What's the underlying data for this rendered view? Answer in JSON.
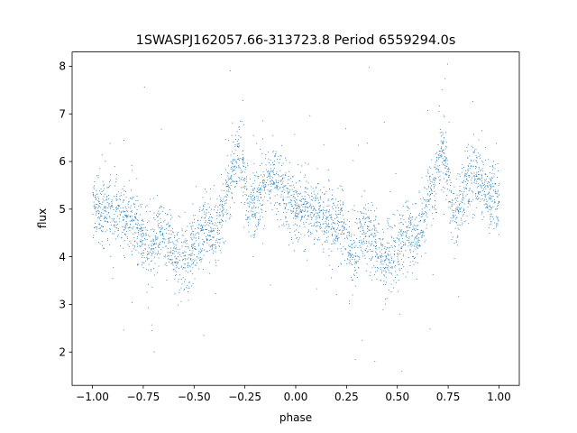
{
  "chart_data": {
    "type": "scatter",
    "title": "1SWASPJ162057.66-313723.8 Period 6559294.0s",
    "xlabel": "phase",
    "ylabel": "flux",
    "xlim": [
      -1.1,
      1.1
    ],
    "ylim": [
      1.3,
      8.3
    ],
    "grid": false,
    "legend": "none",
    "marker_color": "#1f77b4",
    "x_ticks": [
      {
        "value": -1.0,
        "label": "−1.00"
      },
      {
        "value": -0.75,
        "label": "−0.75"
      },
      {
        "value": -0.5,
        "label": "−0.50"
      },
      {
        "value": -0.25,
        "label": "−0.25"
      },
      {
        "value": 0.0,
        "label": "0.00"
      },
      {
        "value": 0.25,
        "label": "0.25"
      },
      {
        "value": 0.5,
        "label": "0.50"
      },
      {
        "value": 0.75,
        "label": "0.75"
      },
      {
        "value": 1.0,
        "label": "1.00"
      }
    ],
    "y_ticks": [
      {
        "value": 2,
        "label": "2"
      },
      {
        "value": 3,
        "label": "3"
      },
      {
        "value": 4,
        "label": "4"
      },
      {
        "value": 5,
        "label": "5"
      },
      {
        "value": 6,
        "label": "6"
      },
      {
        "value": 7,
        "label": "7"
      },
      {
        "value": 8,
        "label": "8"
      }
    ],
    "series": [
      {
        "phase_range": [
          -1.0,
          1.0
        ],
        "repeats_every": 1.0,
        "profile": {
          "x": [
            0.0,
            0.05,
            0.12,
            0.2,
            0.25,
            0.28,
            0.33,
            0.38,
            0.43,
            0.5,
            0.55,
            0.6,
            0.65,
            0.7,
            0.72,
            0.77,
            0.82,
            0.88,
            0.93,
            0.97,
            1.0
          ],
          "y": [
            5.1,
            5.0,
            4.85,
            4.7,
            4.4,
            4.0,
            4.6,
            4.3,
            3.9,
            4.2,
            4.6,
            4.4,
            5.2,
            5.9,
            6.3,
            5.0,
            5.3,
            5.7,
            5.4,
            5.2,
            5.1
          ]
        },
        "scatter_sd": 0.35
      }
    ]
  }
}
